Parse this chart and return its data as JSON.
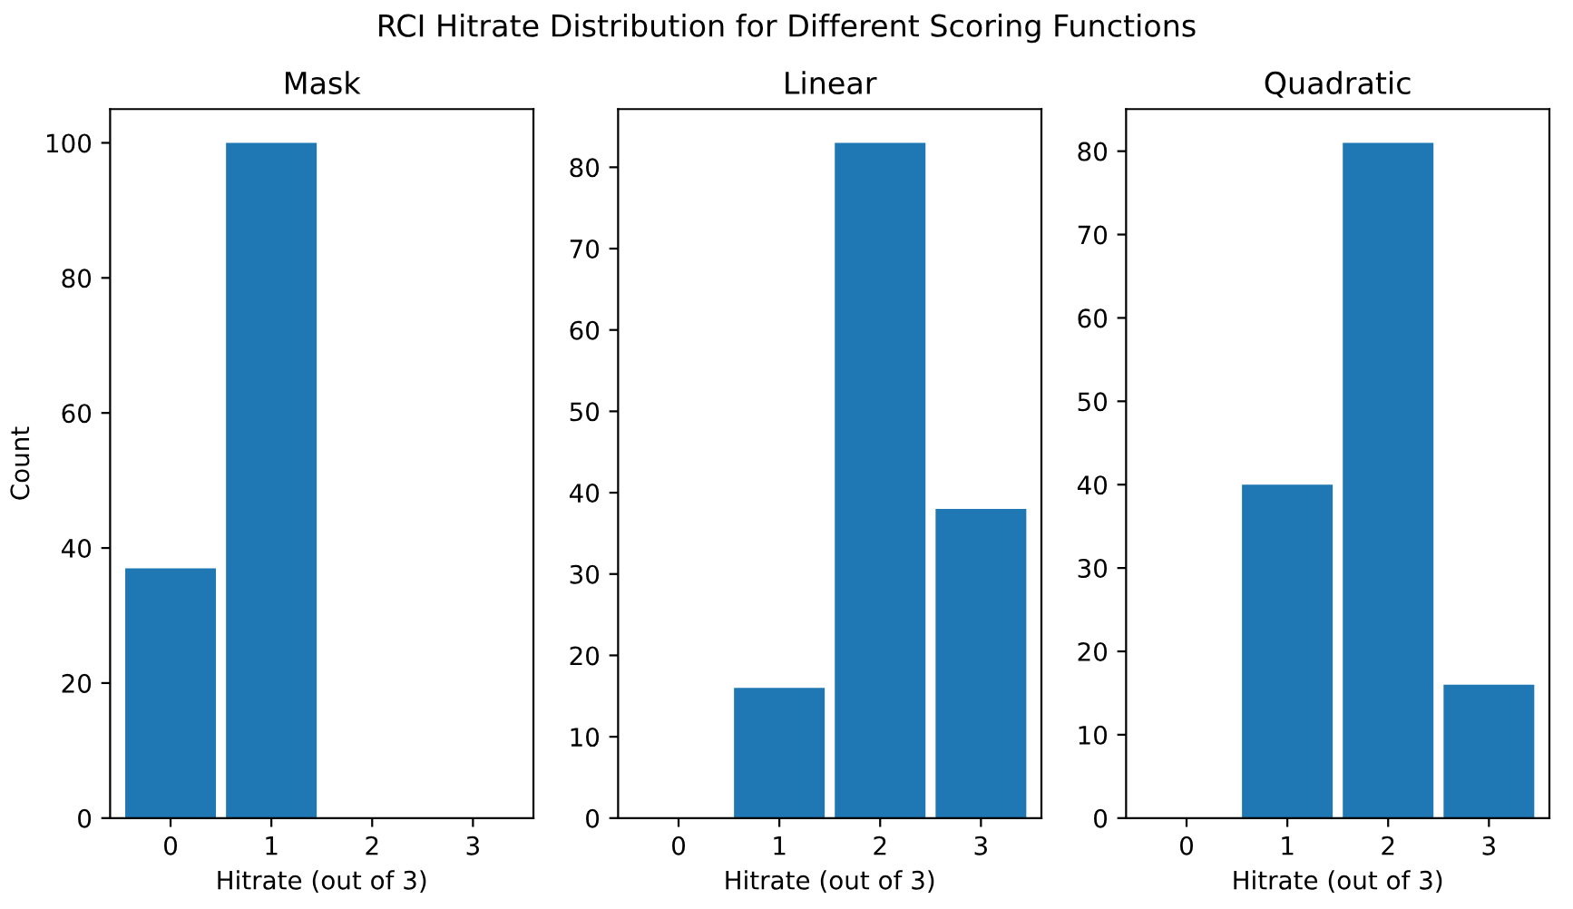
{
  "chart_data": [
    {
      "type": "bar",
      "title": "Mask",
      "xlabel": "Hitrate (out of 3)",
      "ylabel": "Count",
      "annotations": [
        "RCI Hitrate Distribution for Different Scoring Functions"
      ],
      "categories": [
        "0",
        "1",
        "2",
        "3"
      ],
      "values": [
        37,
        100,
        0,
        0
      ],
      "color": "#1f77b4",
      "ylim": [
        0,
        105
      ],
      "yticks": [
        0,
        20,
        40,
        60,
        80,
        100
      ]
    },
    {
      "type": "bar",
      "title": "Linear",
      "xlabel": "Hitrate (out of 3)",
      "categories": [
        "0",
        "1",
        "2",
        "3"
      ],
      "values": [
        0,
        16,
        83,
        38
      ],
      "color": "#1f77b4",
      "ylim": [
        0,
        87.15
      ],
      "yticks": [
        0,
        10,
        20,
        30,
        40,
        50,
        60,
        70,
        80
      ]
    },
    {
      "type": "bar",
      "title": "Quadratic",
      "xlabel": "Hitrate (out of 3)",
      "categories": [
        "0",
        "1",
        "2",
        "3"
      ],
      "values": [
        0,
        40,
        81,
        16
      ],
      "color": "#1f77b4",
      "ylim": [
        0,
        85.05
      ],
      "yticks": [
        0,
        10,
        20,
        30,
        40,
        50,
        60,
        70,
        80
      ]
    }
  ]
}
